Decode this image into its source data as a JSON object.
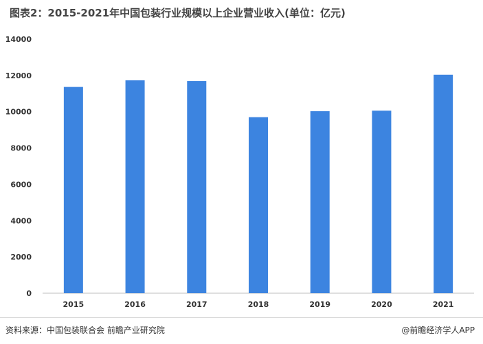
{
  "title": "图表2：2015-2021年中国包装行业规模以上企业营业收入(单位：亿元)",
  "source": "资料来源：中国包装联合会 前瞻产业研究院",
  "brand": "@前瞻经济学人APP",
  "colors": {
    "bar": "#3c84e0",
    "axis": "#bfbfbf",
    "tick_text": "#333333"
  },
  "chart_data": {
    "type": "bar",
    "title": "图表2：2015-2021年中国包装行业规模以上企业营业收入(单位：亿元)",
    "categories": [
      "2015",
      "2016",
      "2017",
      "2018",
      "2019",
      "2020",
      "2021"
    ],
    "values": [
      11365,
      11730,
      11690,
      9700,
      10030,
      10060,
      12040
    ],
    "xlabel": "",
    "ylabel": "",
    "ylim": [
      0,
      14000
    ],
    "yticks": [
      0,
      2000,
      4000,
      6000,
      8000,
      10000,
      12000,
      14000
    ],
    "grid": false,
    "legend": "none"
  }
}
